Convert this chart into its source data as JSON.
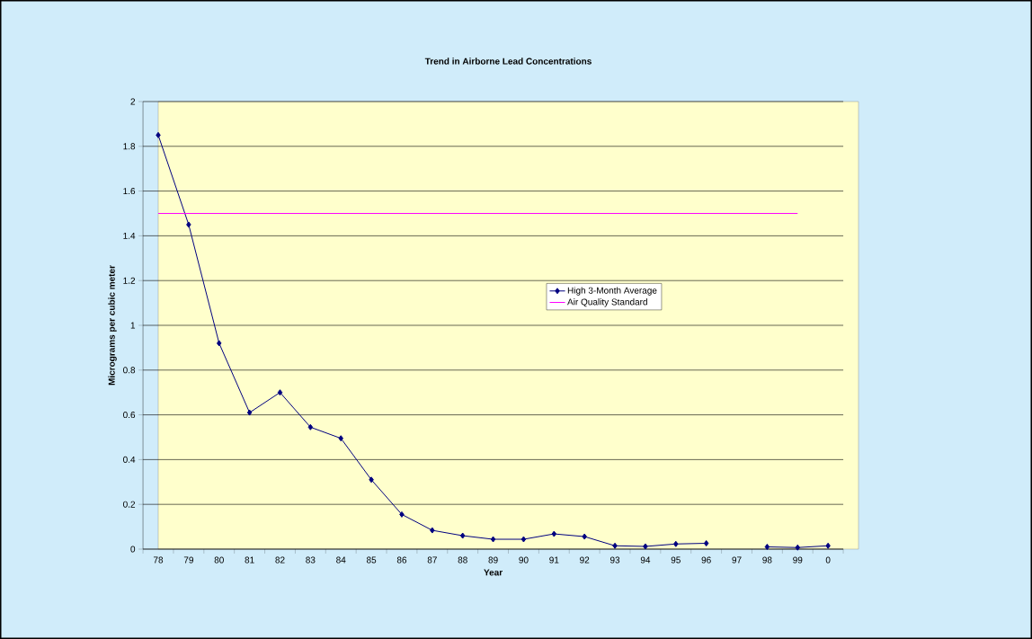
{
  "chart_data": {
    "type": "line",
    "title": "Trend in Airborne Lead Concentrations",
    "xlabel": "Year",
    "ylabel": "Micrograms per cubic meter",
    "categories": [
      "78",
      "79",
      "80",
      "81",
      "82",
      "83",
      "84",
      "85",
      "86",
      "87",
      "88",
      "89",
      "90",
      "91",
      "92",
      "93",
      "94",
      "95",
      "96",
      "97",
      "98",
      "99",
      "0"
    ],
    "series": [
      {
        "name": "High 3-Month Average",
        "color": "#000080",
        "marker": "diamond",
        "values": [
          1.85,
          1.45,
          0.92,
          0.61,
          0.7,
          0.545,
          0.495,
          0.31,
          0.155,
          0.084,
          0.06,
          0.044,
          0.044,
          0.068,
          0.056,
          0.015,
          0.012,
          0.023,
          0.026,
          null,
          0.01,
          0.007,
          0.015
        ]
      },
      {
        "name": "Air Quality Standard",
        "color": "#ff00ff",
        "marker": "none",
        "values": [
          1.5,
          1.5,
          1.5,
          1.5,
          1.5,
          1.5,
          1.5,
          1.5,
          1.5,
          1.5,
          1.5,
          1.5,
          1.5,
          1.5,
          1.5,
          1.5,
          1.5,
          1.5,
          1.5,
          1.5,
          1.5,
          1.5,
          null
        ]
      }
    ],
    "ylim": [
      0,
      2
    ],
    "yticks": [
      0,
      0.2,
      0.4,
      0.6,
      0.8,
      1,
      1.2,
      1.4,
      1.6,
      1.8,
      2
    ],
    "grid": "y",
    "legend": "right"
  }
}
